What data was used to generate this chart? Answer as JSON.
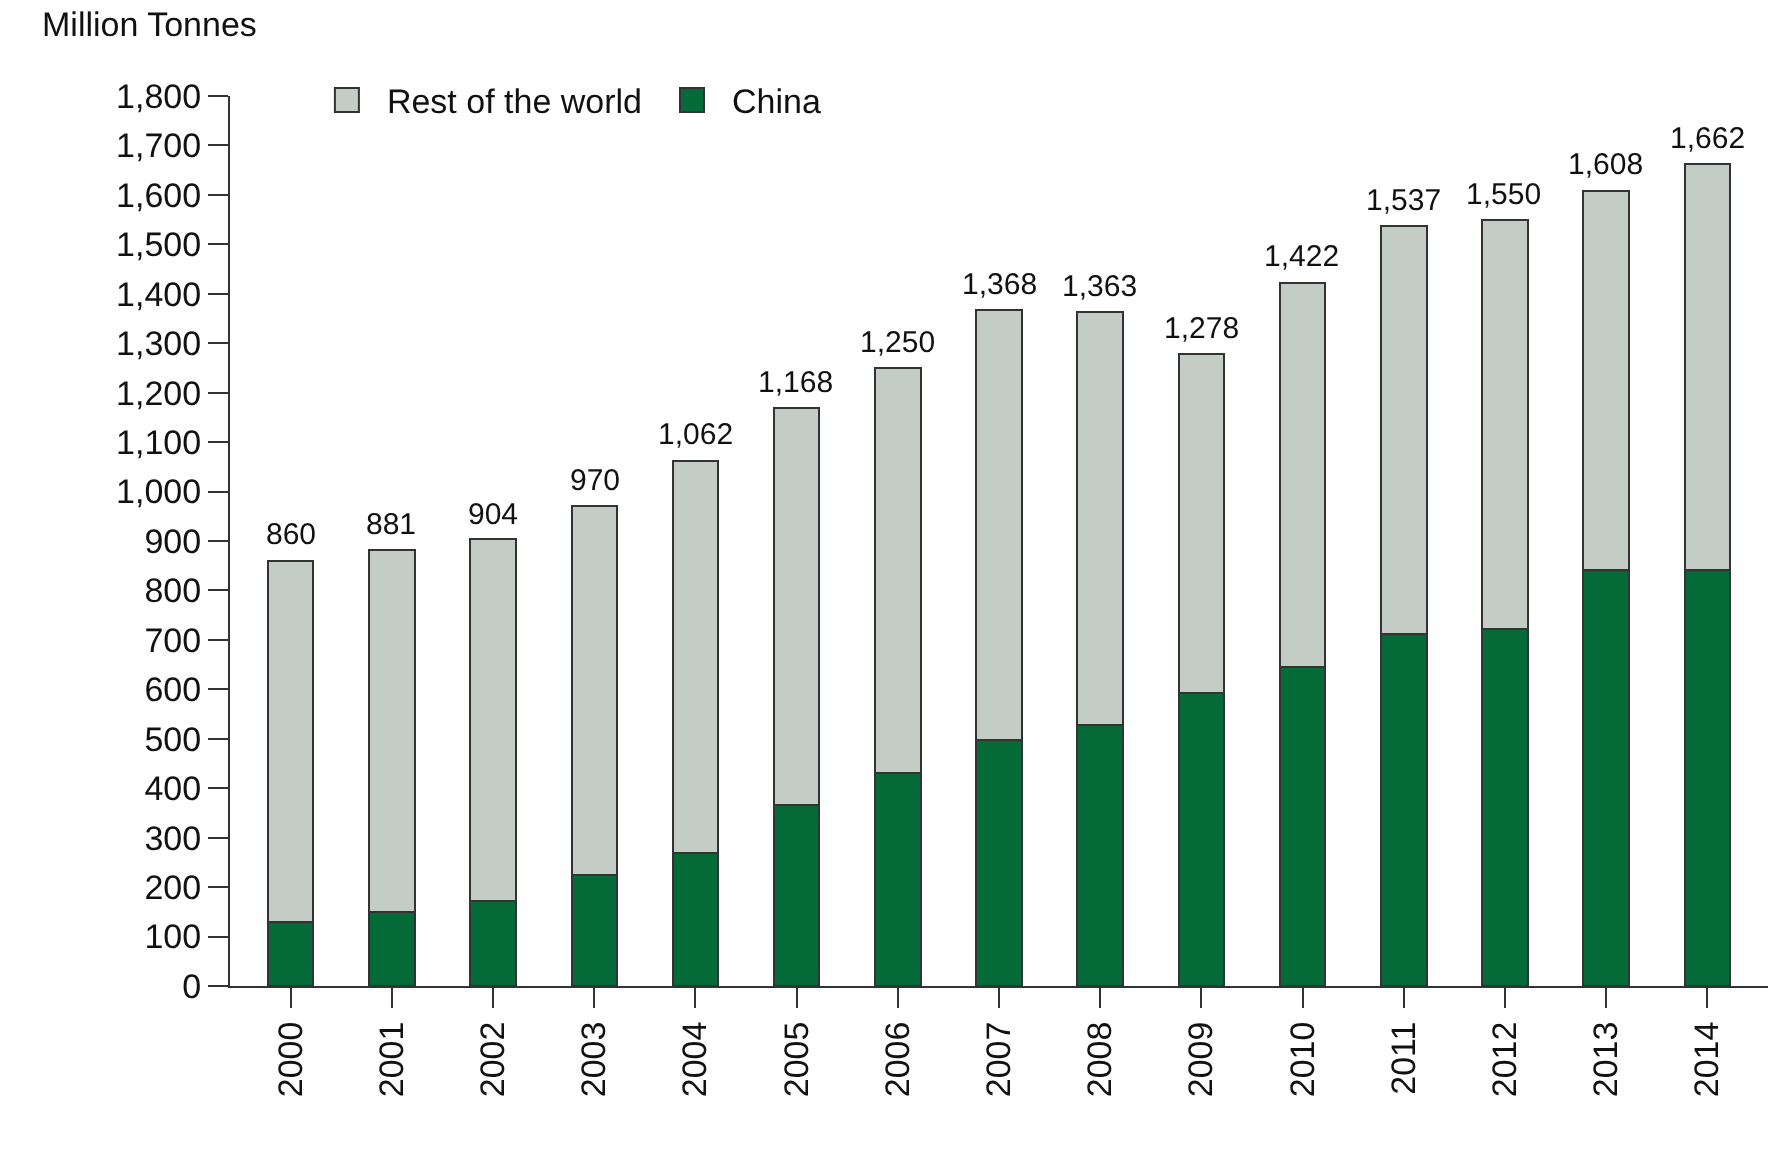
{
  "chart_data": {
    "type": "bar",
    "stacked": true,
    "ylabel": "Million Tonnes",
    "categories": [
      "2000",
      "2001",
      "2002",
      "2003",
      "2004",
      "2005",
      "2006",
      "2007",
      "2008",
      "2009",
      "2010",
      "2011",
      "2012",
      "2013",
      "2014"
    ],
    "series": [
      {
        "name": "China",
        "color": "#036a38",
        "values": [
          130,
          150,
          172,
          224,
          270,
          366,
          431,
          497,
          527,
          593,
          646,
          711,
          723,
          841,
          841
        ]
      },
      {
        "name": "Rest of the world",
        "color": "#c4cdc5",
        "values": [
          730,
          731,
          732,
          746,
          792,
          802,
          819,
          871,
          836,
          685,
          776,
          826,
          827,
          767,
          821
        ]
      }
    ],
    "totals": [
      "860",
      "881",
      "904",
      "970",
      "1,062",
      "1,168",
      "1,250",
      "1,368",
      "1,363",
      "1,278",
      "1,422",
      "1,537",
      "1,550",
      "1,608",
      "1,662"
    ],
    "ylim": [
      0,
      1800
    ],
    "yticks": [
      0,
      100,
      200,
      300,
      400,
      500,
      600,
      700,
      800,
      900,
      {
        "value": 1000,
        "label": "1,000"
      },
      {
        "value": 1100,
        "label": "1,100"
      },
      {
        "value": 1200,
        "label": "1,200"
      },
      {
        "value": 1300,
        "label": "1,300"
      },
      {
        "value": 1400,
        "label": "1,400"
      },
      {
        "value": 1500,
        "label": "1,500"
      },
      {
        "value": 1600,
        "label": "1,600"
      },
      {
        "value": 1700,
        "label": "1,700"
      },
      {
        "value": 1800,
        "label": "1,800"
      }
    ],
    "legend": "top left"
  }
}
